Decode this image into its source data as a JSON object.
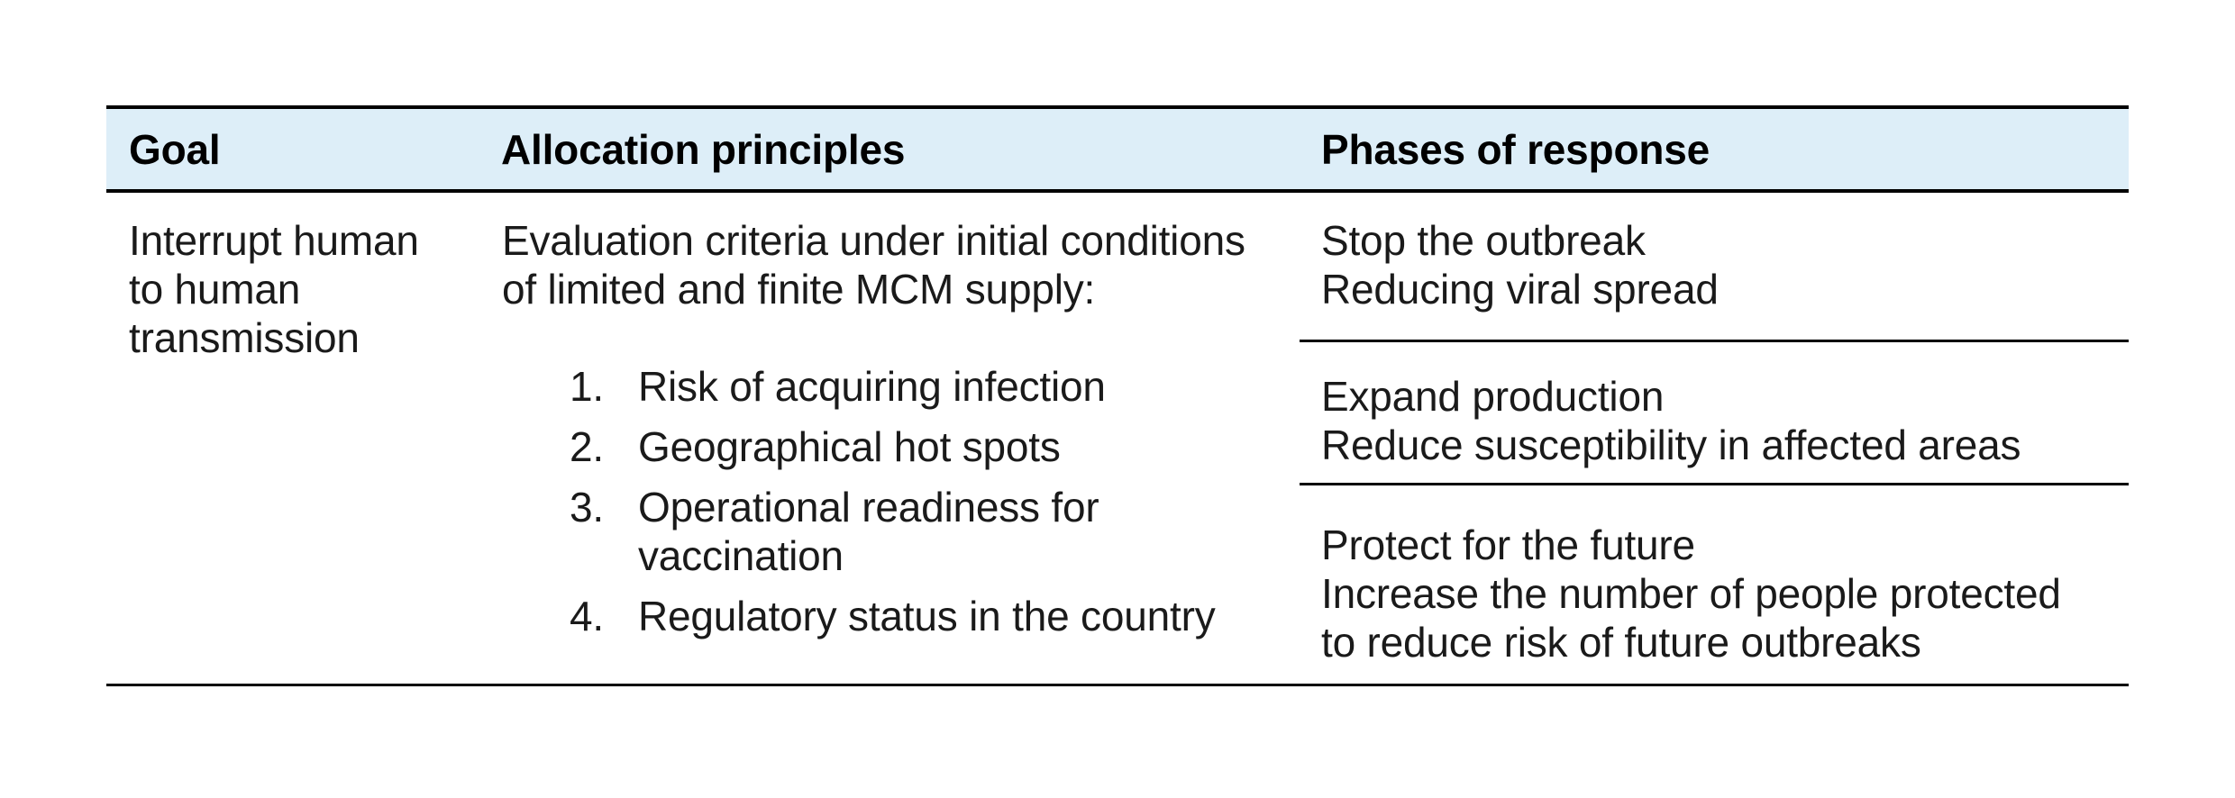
{
  "colors": {
    "header_bg": "#ddeef8",
    "border": "#000000",
    "text": "#1a1a1a"
  },
  "table": {
    "headers": [
      "Goal",
      "Allocation principles",
      "Phases of response"
    ],
    "row": {
      "goal_lines": [
        "Interrupt human",
        "to human",
        "transmission"
      ],
      "allocation": {
        "intro_lines": [
          "Evaluation criteria under initial conditions",
          "of limited and finite MCM supply:"
        ],
        "items": [
          {
            "num": "1.",
            "lines": [
              "Risk of acquiring infection"
            ]
          },
          {
            "num": "2.",
            "lines": [
              "Geographical hot spots"
            ]
          },
          {
            "num": "3.",
            "lines": [
              "Operational readiness for",
              "vaccination"
            ]
          },
          {
            "num": "4.",
            "lines": [
              "Regulatory status in the country"
            ]
          }
        ]
      },
      "phases": [
        {
          "lines": [
            "Stop the outbreak",
            "Reducing viral spread"
          ]
        },
        {
          "lines": [
            "Expand production",
            "Reduce susceptibility in affected areas"
          ]
        },
        {
          "lines": [
            "Protect for the future",
            "Increase the number of people protected",
            "to reduce risk of future outbreaks"
          ]
        }
      ]
    }
  }
}
